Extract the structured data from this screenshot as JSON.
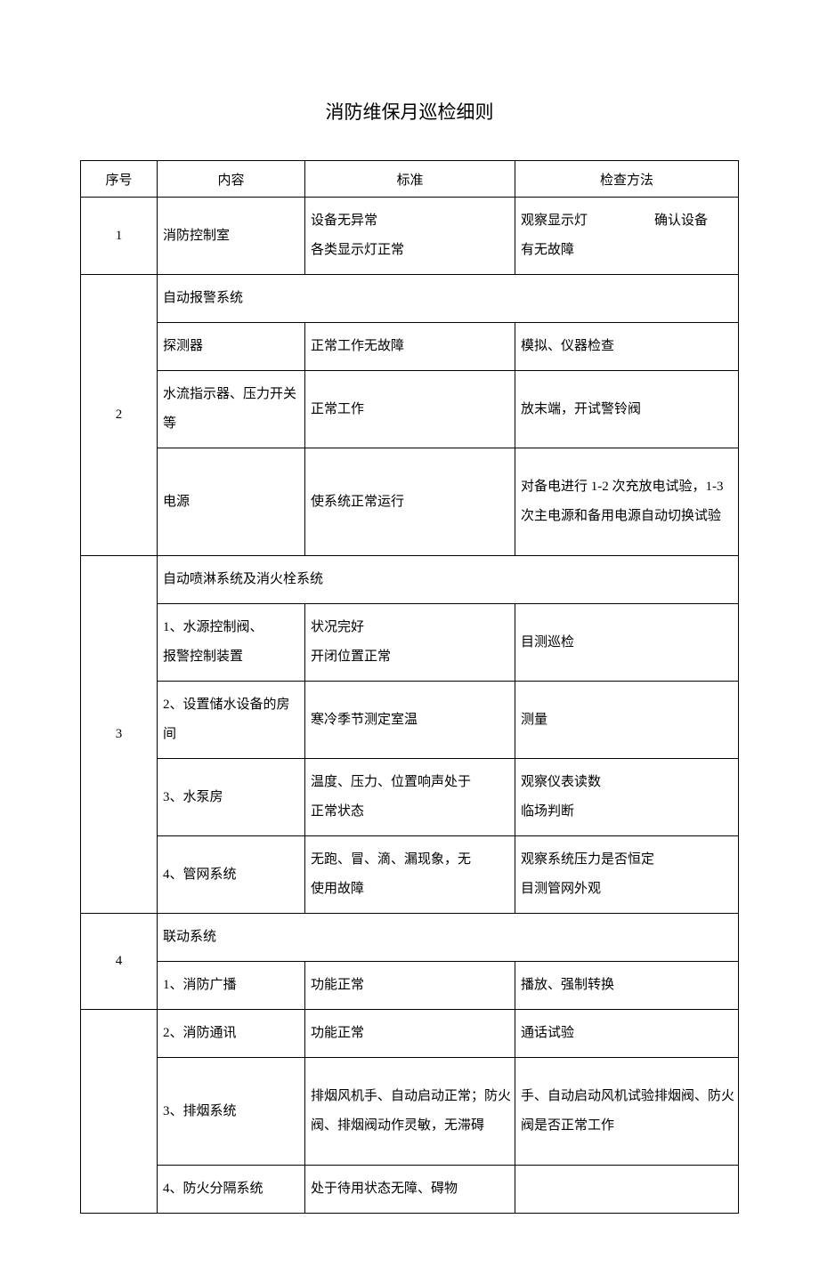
{
  "title": "消防维保月巡检细则",
  "headers": {
    "seq": "序号",
    "content": "内容",
    "standard": "标准",
    "method": "检查方法"
  },
  "rows": {
    "r1": {
      "seq": "1",
      "content": "消防控制室",
      "standard_l1": "设备无异常",
      "standard_l2": "各类显示灯正常",
      "method_l1a": "观察显示灯",
      "method_l1b": "确认设备",
      "method_l2": "有无故障"
    },
    "r2": {
      "seq": "2",
      "head": "自动报警系统",
      "sub1": {
        "content": "探测器",
        "standard": "正常工作无故障",
        "method": "模拟、仪器检查"
      },
      "sub2": {
        "content": "水流指示器、压力开关等",
        "standard": "正常工作",
        "method": "放末端，开试警铃阀"
      },
      "sub3": {
        "content": "电源",
        "standard": "使系统正常运行",
        "method": "对备电进行 1-2 次充放电试验，1-3 次主电源和备用电源自动切换试验"
      }
    },
    "r3": {
      "seq": "3",
      "head": "自动喷淋系统及消火栓系统",
      "sub1": {
        "content_l1": "1、水源控制阀、",
        "content_l2": "报警控制装置",
        "standard_l1": "状况完好",
        "standard_l2": "开闭位置正常",
        "method": "目测巡检"
      },
      "sub2": {
        "content": "2、设置储水设备的房间",
        "standard": "寒冷季节测定室温",
        "method": "测量"
      },
      "sub3": {
        "content": "3、水泵房",
        "standard_l1": "温度、压力、位置响声处于",
        "standard_l2": "正常状态",
        "method_l1": "观察仪表读数",
        "method_l2": "临场判断"
      },
      "sub4": {
        "content": "4、管网系统",
        "standard_l1": "无跑、冒、滴、漏现象，无",
        "standard_l2": "使用故障",
        "method_l1": "观察系统压力是否恒定",
        "method_l2": "目测管网外观"
      }
    },
    "r4": {
      "seq": "4",
      "head": "联动系统",
      "sub1": {
        "content": "1、消防广播",
        "standard": "功能正常",
        "method": "播放、强制转换"
      },
      "sub2": {
        "content": "2、消防通讯",
        "standard": "功能正常",
        "method": "通话试验"
      },
      "sub3": {
        "content": "3、排烟系统",
        "standard": "排烟风机手、自动启动正常；防火阀、排烟阀动作灵敏，无滞碍",
        "method": "手、自动启动风机试验排烟阀、防火阀是否正常工作"
      },
      "sub4": {
        "content": "4、防火分隔系统",
        "standard": "处于待用状态无障、碍物",
        "method": ""
      }
    }
  }
}
